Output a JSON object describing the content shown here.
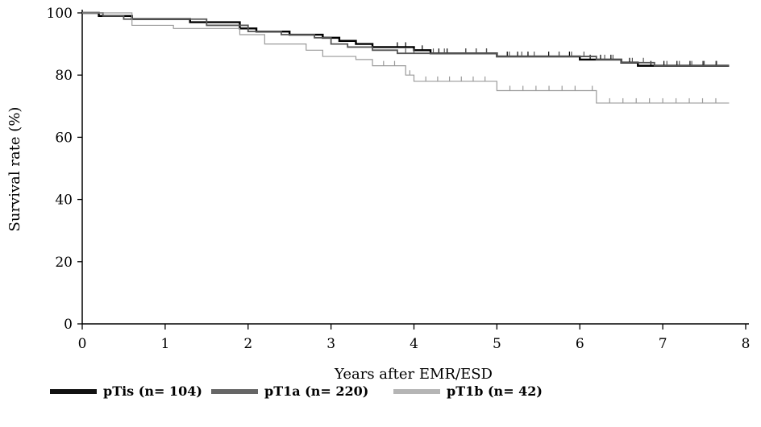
{
  "chart_data": {
    "type": "line",
    "title": "",
    "xlabel": "Years after EMR/ESD",
    "ylabel": "Survival rate (%)",
    "xlim": [
      0,
      8
    ],
    "ylim": [
      0,
      100
    ],
    "xticks": [
      0,
      1,
      2,
      3,
      4,
      5,
      6,
      7,
      8
    ],
    "yticks": [
      0,
      20,
      40,
      60,
      80,
      100
    ],
    "grid": false,
    "legend_position": "bottom",
    "series": [
      {
        "name": "pTis (n= 104)",
        "color": "#000000",
        "step": true,
        "x": [
          0,
          0.2,
          0.6,
          1.3,
          1.9,
          2.1,
          2.5,
          2.9,
          3.1,
          3.3,
          3.5,
          3.7,
          4.0,
          4.2,
          4.5,
          5.0,
          5.5,
          6.0,
          6.5,
          6.7,
          7.8
        ],
        "y": [
          100,
          99,
          98,
          97,
          95,
          94,
          93,
          92,
          91,
          90,
          89,
          89,
          88,
          87,
          87,
          86,
          86,
          85,
          84,
          83,
          83
        ]
      },
      {
        "name": "pT1a (n= 220)",
        "color": "#555555",
        "step": true,
        "x": [
          0,
          0.25,
          0.5,
          1.0,
          1.5,
          2.0,
          2.4,
          2.8,
          3.0,
          3.2,
          3.5,
          3.8,
          4.1,
          4.5,
          5.0,
          5.6,
          6.2,
          6.5,
          6.9,
          7.8
        ],
        "y": [
          100,
          99,
          98,
          98,
          96,
          94,
          93,
          92,
          90,
          89,
          88,
          87,
          87,
          87,
          86,
          86,
          85,
          84,
          83,
          83
        ]
      },
      {
        "name": "pT1b (n= 42)",
        "color": "#9a9a9a",
        "step": true,
        "x": [
          0,
          0.6,
          1.1,
          1.9,
          2.2,
          2.7,
          2.9,
          3.3,
          3.5,
          3.9,
          4.0,
          5.0,
          6.1,
          6.2,
          7.8
        ],
        "y": [
          100,
          96,
          95,
          93,
          90,
          88,
          86,
          85,
          83,
          80,
          78,
          75,
          75,
          71,
          71
        ]
      }
    ]
  }
}
